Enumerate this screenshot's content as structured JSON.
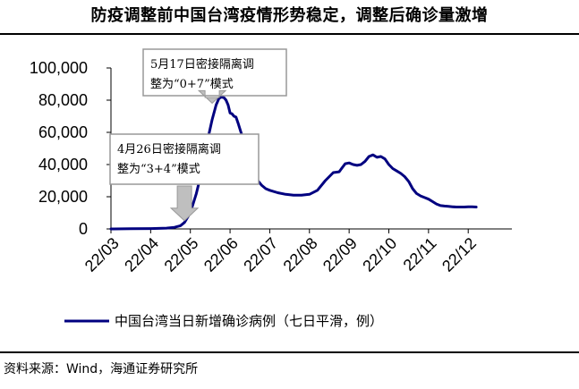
{
  "title": "防疫调整前中国台湾疫情形势稳定，调整后确诊量激增",
  "source": "资料来源：Wind，海通证券研究所",
  "colors": {
    "series": "#000080",
    "annotation_border": "#999999",
    "annotation_arrow": "#bfbfbf"
  },
  "chart_data": {
    "type": "line",
    "title": "防疫调整前中国台湾疫情形势稳定，调整后确诊量激增",
    "xlabel": "",
    "ylabel": "",
    "ylim": [
      0,
      100000
    ],
    "yticks": [
      0,
      20000,
      40000,
      60000,
      80000,
      100000
    ],
    "ytick_labels": [
      "0",
      "20,000",
      "40,000",
      "60,000",
      "80,000",
      "100,000"
    ],
    "xlim": [
      0,
      10.1
    ],
    "xticks": [
      0,
      1,
      2,
      3,
      4,
      5,
      6,
      7,
      8,
      9
    ],
    "xtick_labels": [
      "22/03",
      "22/04",
      "22/05",
      "22/06",
      "22/07",
      "22/08",
      "22/09",
      "22/10",
      "22/11",
      "22/12"
    ],
    "grid": false,
    "legend_position": "bottom",
    "series": [
      {
        "name": "中国台湾当日新增确诊病例（七日平滑，例）",
        "x": [
          0,
          0.5,
          1.0,
          1.4,
          1.6,
          1.75,
          1.85,
          1.95,
          2.05,
          2.15,
          2.25,
          2.35,
          2.45,
          2.55,
          2.65,
          2.72,
          2.78,
          2.85,
          2.9,
          2.95,
          3.0,
          3.05,
          3.1,
          3.15,
          3.2,
          3.3,
          3.4,
          3.5,
          3.6,
          3.7,
          3.8,
          3.9,
          4.0,
          4.2,
          4.4,
          4.6,
          4.8,
          5.0,
          5.2,
          5.4,
          5.6,
          5.75,
          5.9,
          6.0,
          6.1,
          6.2,
          6.3,
          6.4,
          6.5,
          6.6,
          6.7,
          6.8,
          6.9,
          7.0,
          7.1,
          7.2,
          7.3,
          7.4,
          7.5,
          7.6,
          7.7,
          7.8,
          7.9,
          8.0,
          8.1,
          8.2,
          8.3,
          8.4,
          8.5,
          8.6,
          8.7,
          8.8,
          8.9,
          9.0,
          9.1,
          9.2
        ],
        "y": [
          0,
          100,
          200,
          500,
          1000,
          2000,
          4000,
          8000,
          14000,
          22000,
          32000,
          44000,
          57000,
          68000,
          77000,
          81000,
          82000,
          81500,
          80000,
          77000,
          72000,
          71500,
          70000,
          69500,
          66000,
          58000,
          48000,
          40000,
          34000,
          30000,
          27000,
          25000,
          24000,
          22500,
          21500,
          21000,
          21000,
          21500,
          24000,
          30000,
          35000,
          35500,
          40500,
          41000,
          40000,
          39500,
          40000,
          42000,
          45000,
          46000,
          44500,
          45000,
          43500,
          40000,
          37500,
          36000,
          34500,
          32500,
          29500,
          25000,
          22000,
          20500,
          19500,
          18500,
          17000,
          15500,
          14500,
          14200,
          14000,
          13800,
          13600,
          13600,
          13600,
          13700,
          13700,
          13600
        ]
      }
    ],
    "annotations": [
      {
        "line1": "5月17日密接隔离调",
        "line2": "整为“0+7”模式",
        "x": 2.55,
        "y": 77000
      },
      {
        "line1": "4月26日密接隔离调",
        "line2": "整为“3+4”模式",
        "x": 1.85,
        "y": 4000
      }
    ]
  }
}
